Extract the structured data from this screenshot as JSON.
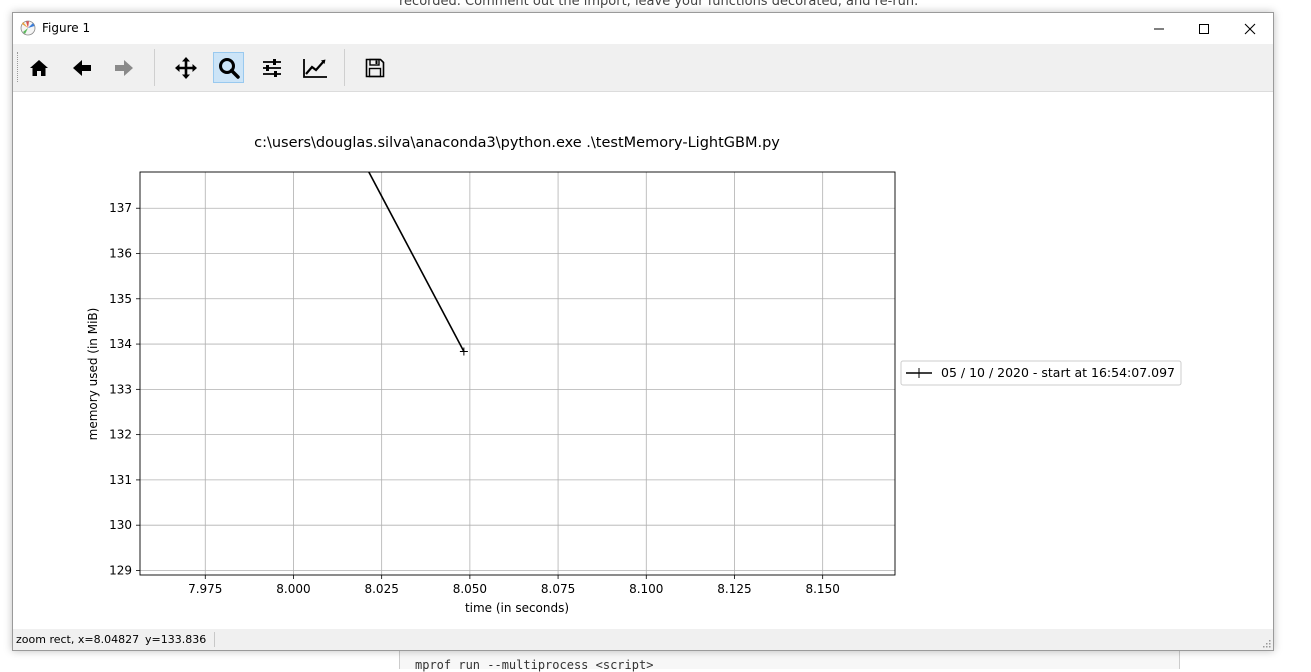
{
  "background": {
    "top_text": "recorded. Comment out the import, leave your functions decorated, and re-run.",
    "bottom_text": "mprof run --multiprocess <script>"
  },
  "window": {
    "title": "Figure 1",
    "controls": {
      "minimize": "minimize-icon",
      "maximize": "maximize-icon",
      "close": "close-icon"
    }
  },
  "toolbar": {
    "items": [
      {
        "name": "home-button",
        "icon": "home-icon"
      },
      {
        "name": "back-button",
        "icon": "arrow-left-icon"
      },
      {
        "name": "forward-button",
        "icon": "arrow-right-icon"
      },
      {
        "name": "pan-button",
        "icon": "move-icon"
      },
      {
        "name": "zoom-button",
        "icon": "magnifier-icon",
        "active": true
      },
      {
        "name": "subplots-button",
        "icon": "sliders-icon"
      },
      {
        "name": "axes-edit-button",
        "icon": "line-chart-icon"
      },
      {
        "name": "save-button",
        "icon": "floppy-disk-icon"
      }
    ]
  },
  "chart_data": {
    "type": "line",
    "title": "c:\\users\\douglas.silva\\anaconda3\\python.exe .\\testMemory-LightGBM.py",
    "xlabel": "time (in seconds)",
    "ylabel": "memory used (in MiB)",
    "xlim": [
      7.9565,
      8.1705
    ],
    "ylim": [
      128.9,
      137.8
    ],
    "xticks": [
      7.975,
      8.0,
      8.025,
      8.05,
      8.075,
      8.1,
      8.125,
      8.15
    ],
    "xtick_labels": [
      "7.975",
      "8.000",
      "8.025",
      "8.050",
      "8.075",
      "8.100",
      "8.125",
      "8.150"
    ],
    "yticks": [
      129,
      130,
      131,
      132,
      133,
      134,
      135,
      136,
      137
    ],
    "ytick_labels": [
      "129",
      "130",
      "131",
      "132",
      "133",
      "134",
      "135",
      "136",
      "137"
    ],
    "grid": true,
    "legend_position": "right, outside axes",
    "series": [
      {
        "name": "05 / 10 / 2020 - start at 16:54:07.097",
        "color": "#000000",
        "marker": "+",
        "x": [
          8.02,
          8.0483
        ],
        "y": [
          138.0,
          133.836
        ]
      }
    ]
  },
  "status": {
    "x_text": "zoom rect, x=8.04827",
    "y_text": "y=133.836"
  },
  "colors": {
    "toolbar_bg": "#f0f0f0",
    "active_tool_bg": "#cce4f7",
    "active_tool_border": "#99c9ef",
    "grid": "#b0b0b0"
  }
}
